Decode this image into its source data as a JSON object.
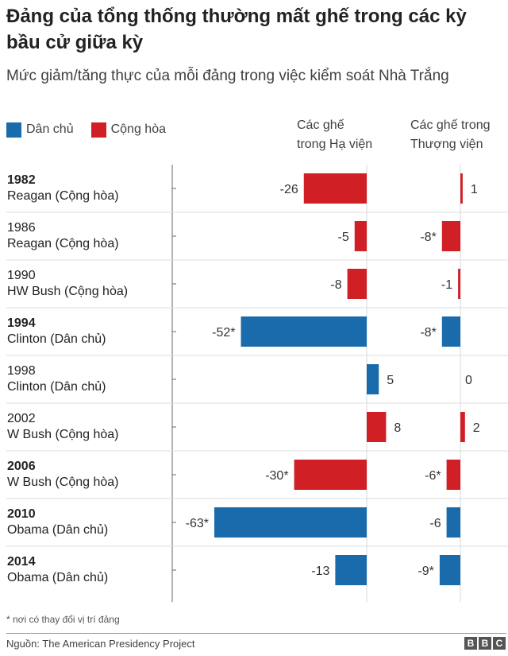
{
  "title": "Đảng của tổng thống thường mất ghế trong các kỳ bầu cử giữa kỳ",
  "subtitle": "Mức giảm/tăng thực của mỗi đảng trong việc kiểm soát Nhà Trắng",
  "legend": {
    "dem_label": "Dân chủ",
    "rep_label": "Cộng hòa"
  },
  "columns": {
    "house_line1": "Các ghế",
    "house_line2": "trong Hạ viện",
    "senate_line1": "Các ghế trong",
    "senate_line2": "Thượng viện"
  },
  "colors": {
    "dem": "#1a6bab",
    "rep": "#d11f26"
  },
  "chart_data": {
    "type": "bar",
    "orientation": "horizontal",
    "categories": [
      {
        "year": "1982",
        "president": "Reagan (Cộng hòa)",
        "party": "rep",
        "bold": true
      },
      {
        "year": "1986",
        "president": "Reagan (Cộng hòa)",
        "party": "rep",
        "bold": false
      },
      {
        "year": "1990",
        "president": "HW Bush (Cộng hòa)",
        "party": "rep",
        "bold": false
      },
      {
        "year": "1994",
        "president": "Clinton (Dân chủ)",
        "party": "dem",
        "bold": true
      },
      {
        "year": "1998",
        "president": "Clinton (Dân chủ)",
        "party": "dem",
        "bold": false
      },
      {
        "year": "2002",
        "president": "W Bush (Cộng hòa)",
        "party": "rep",
        "bold": false
      },
      {
        "year": "2006",
        "president": "W Bush (Cộng hòa)",
        "party": "rep",
        "bold": true
      },
      {
        "year": "2010",
        "president": "Obama (Dân chủ)",
        "party": "dem",
        "bold": true
      },
      {
        "year": "2014",
        "president": "Obama (Dân chủ)",
        "party": "dem",
        "bold": true
      }
    ],
    "series": [
      {
        "name": "Các ghế trong Hạ viện",
        "values": [
          -26,
          -5,
          -8,
          -52,
          5,
          8,
          -30,
          -63,
          -13
        ],
        "labels": [
          "-26",
          "-5",
          "-8",
          "-52*",
          "5",
          "8",
          "-30*",
          "-63*",
          "-13"
        ]
      },
      {
        "name": "Các ghế trong Thượng viện",
        "values": [
          1,
          -8,
          -1,
          -8,
          0,
          2,
          -6,
          -6,
          -9
        ],
        "labels": [
          "1",
          "-8*",
          "-1",
          "-8*",
          "0",
          "2",
          "-6*",
          "-6",
          "-9*"
        ]
      }
    ]
  },
  "footnote": "* nơi có thay đổi vị trí đảng",
  "source": "Nguồn: The American Presidency Project",
  "logo": "BBC"
}
